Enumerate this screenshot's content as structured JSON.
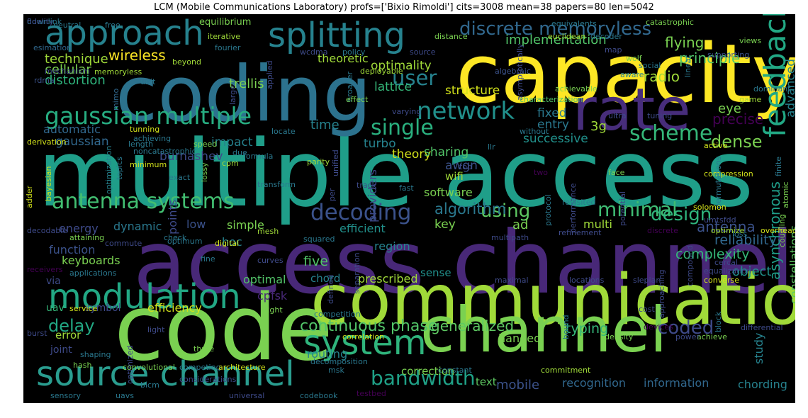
{
  "title": "LCM (Mobile Communications Laboratory) profs=['Bixio Rimoldi'] cits=3008 mean=38 papers=80 len=5042",
  "palette": {
    "background": "#000000",
    "yellow": "#fde725",
    "lightgreen": "#7ad151",
    "green": "#22a884",
    "teal": "#2a788e",
    "blue": "#414487",
    "purple": "#440154"
  },
  "words": [
    {
      "text": "multiple access",
      "color": "#1f9e89"
    },
    {
      "text": "access channel",
      "color": "#482878"
    },
    {
      "text": "capacity",
      "color": "#fde725"
    },
    {
      "text": "coding",
      "color": "#2c728e"
    },
    {
      "text": "code",
      "color": "#7ad151"
    },
    {
      "text": "communication",
      "color": "#a0da39"
    },
    {
      "text": "channel",
      "color": "#7ad151"
    },
    {
      "text": "rate",
      "color": "#472d7b"
    },
    {
      "text": "splitting",
      "color": "#26828e"
    },
    {
      "text": "approach",
      "color": "#26828e"
    },
    {
      "text": "modulation",
      "color": "#22a884"
    },
    {
      "text": "source channel",
      "color": "#2a9d8f"
    },
    {
      "text": "system",
      "color": "#2fb47c"
    },
    {
      "text": "gaussian multiple",
      "color": "#27ad81"
    },
    {
      "text": "discrete memoryless",
      "color": "#31688e"
    },
    {
      "text": "network",
      "color": "#21918c"
    },
    {
      "text": "feedback",
      "color": "#22a884"
    },
    {
      "text": "scheme",
      "color": "#35b779"
    },
    {
      "text": "single",
      "color": "#2ab07f"
    },
    {
      "text": "user",
      "color": "#26828e"
    },
    {
      "text": "antenna systems",
      "color": "#42be71"
    },
    {
      "text": "decoding",
      "color": "#3b528b"
    },
    {
      "text": "minimal",
      "color": "#3fbc73"
    },
    {
      "text": "using",
      "color": "#5ec962"
    },
    {
      "text": "design",
      "color": "#2fb47c"
    },
    {
      "text": "bandwidth",
      "color": "#1fa187"
    },
    {
      "text": "delay",
      "color": "#22a884"
    },
    {
      "text": "continuous phase",
      "color": "#52c569"
    },
    {
      "text": "generalized",
      "color": "#5ec962"
    },
    {
      "text": "asynchronous",
      "color": "#1f9e89"
    },
    {
      "text": "coded",
      "color": "#3e4a89"
    },
    {
      "text": "dense",
      "color": "#7ad151"
    },
    {
      "text": "flying",
      "color": "#7ad151"
    },
    {
      "text": "principle",
      "color": "#52c569"
    },
    {
      "text": "radio",
      "color": "#a0da39"
    },
    {
      "text": "implementation",
      "color": "#52c569"
    },
    {
      "text": "trellis",
      "color": "#7ad151"
    },
    {
      "text": "wireless",
      "color": "#fde725"
    },
    {
      "text": "technique",
      "color": "#a0da39"
    },
    {
      "text": "cellular",
      "color": "#7ad151"
    },
    {
      "text": "distortion",
      "color": "#2fb47c"
    },
    {
      "text": "optimality",
      "color": "#a0da39"
    },
    {
      "text": "structure",
      "color": "#d2e21b"
    },
    {
      "text": "lattice",
      "color": "#35b779"
    },
    {
      "text": "theoretic",
      "color": "#a0da39"
    },
    {
      "text": "advanced",
      "color": "#26828e"
    },
    {
      "text": "eye",
      "color": "#7ad151"
    },
    {
      "text": "time",
      "color": "#26828e"
    },
    {
      "text": "automatic",
      "color": "#31688e"
    },
    {
      "text": "burnashev",
      "color": "#3e4a89"
    },
    {
      "text": "gaussian",
      "color": "#31688e"
    },
    {
      "text": "impact",
      "color": "#26828e"
    },
    {
      "text": "turbo",
      "color": "#26828e"
    },
    {
      "text": "theory",
      "color": "#d2e21b"
    },
    {
      "text": "fixed",
      "color": "#2a788e"
    },
    {
      "text": "entry",
      "color": "#2a788e"
    },
    {
      "text": "3g",
      "color": "#a0da39"
    },
    {
      "text": "successive",
      "color": "#21918c"
    },
    {
      "text": "precise",
      "color": "#440154"
    },
    {
      "text": "sharing",
      "color": "#52c569"
    },
    {
      "text": "awgn",
      "color": "#3b528b"
    },
    {
      "text": "wifi",
      "color": "#a0da39"
    },
    {
      "text": "software",
      "color": "#7ad151"
    },
    {
      "text": "algorithm",
      "color": "#2a788e"
    },
    {
      "text": "ad",
      "color": "#7ad151"
    },
    {
      "text": "key",
      "color": "#7ad151"
    },
    {
      "text": "multi",
      "color": "#a0da39"
    },
    {
      "text": "antenna",
      "color": "#3b528b"
    },
    {
      "text": "reliability",
      "color": "#31688e"
    },
    {
      "text": "complexity",
      "color": "#35b779"
    },
    {
      "text": "constellations",
      "color": "#5ec962"
    },
    {
      "text": "object",
      "color": "#21918c"
    },
    {
      "text": "energy",
      "color": "#3e4a89"
    },
    {
      "text": "dynamic",
      "color": "#2a788e"
    },
    {
      "text": "low",
      "color": "#3b528b"
    },
    {
      "text": "simple",
      "color": "#7ad151"
    },
    {
      "text": "points",
      "color": "#3e4a89"
    },
    {
      "text": "providers",
      "color": "#3e4a89"
    },
    {
      "text": "efficient",
      "color": "#21918c"
    },
    {
      "text": "hoc",
      "color": "#26828e"
    },
    {
      "text": "function",
      "color": "#3b528b"
    },
    {
      "text": "five",
      "color": "#52c569"
    },
    {
      "text": "region",
      "color": "#26828e"
    },
    {
      "text": "keyboards",
      "color": "#7ad151"
    },
    {
      "text": "optimal",
      "color": "#52c569"
    },
    {
      "text": "chord",
      "color": "#26828e"
    },
    {
      "text": "prescribed",
      "color": "#a0da39"
    },
    {
      "text": "sense",
      "color": "#21918c"
    },
    {
      "text": "cpfsk",
      "color": "#482878"
    },
    {
      "text": "via",
      "color": "#3e4a89"
    },
    {
      "text": "uav",
      "color": "#35b779"
    },
    {
      "text": "symbol",
      "color": "#3e4a89"
    },
    {
      "text": "efficiency",
      "color": "#d2e21b"
    },
    {
      "text": "error",
      "color": "#a0da39"
    },
    {
      "text": "joint",
      "color": "#3e4a89"
    },
    {
      "text": "typing",
      "color": "#35b779"
    },
    {
      "text": "routing",
      "color": "#26828e"
    },
    {
      "text": "handed",
      "color": "#7ad151"
    },
    {
      "text": "study",
      "color": "#26828e"
    },
    {
      "text": "mobile",
      "color": "#3b528b"
    },
    {
      "text": "recognition",
      "color": "#31688e"
    },
    {
      "text": "information",
      "color": "#31688e"
    },
    {
      "text": "chording",
      "color": "#26828e"
    },
    {
      "text": "correction",
      "color": "#7ad151"
    },
    {
      "text": "text",
      "color": "#5ec962"
    },
    {
      "text": "equilibrium",
      "color": "#7ad151"
    },
    {
      "text": "neutral",
      "color": "#2a788e"
    },
    {
      "text": "free",
      "color": "#2a788e"
    },
    {
      "text": "iterative",
      "color": "#a0da39"
    },
    {
      "text": "distance",
      "color": "#7ad151"
    },
    {
      "text": "euclidean",
      "color": "#a0da39"
    },
    {
      "text": "decoder",
      "color": "#2a788e"
    },
    {
      "text": "catastrophic",
      "color": "#7ad151"
    },
    {
      "text": "equivalents",
      "color": "#2a788e"
    },
    {
      "text": "views",
      "color": "#7ad151"
    },
    {
      "text": "esimation",
      "color": "#31688e"
    },
    {
      "text": "fourier",
      "color": "#2a788e"
    },
    {
      "text": "wcdma",
      "color": "#3e4a89"
    },
    {
      "text": "source",
      "color": "#3e4a89"
    },
    {
      "text": "map",
      "color": "#3e4a89"
    },
    {
      "text": "linear",
      "color": "#2a788e"
    },
    {
      "text": "social",
      "color": "#2a788e"
    },
    {
      "text": "supporting",
      "color": "#3b528b"
    },
    {
      "text": "wolf",
      "color": "#7ad151"
    },
    {
      "text": "beyond",
      "color": "#a0da39"
    },
    {
      "text": "policy",
      "color": "#2a788e"
    },
    {
      "text": "deployable",
      "color": "#a0da39"
    },
    {
      "text": "mechanism",
      "color": "#3e4a89"
    },
    {
      "text": "memoryless",
      "color": "#a0da39"
    },
    {
      "text": "mimo",
      "color": "#31688e"
    },
    {
      "text": "rdma",
      "color": "#3b528b"
    },
    {
      "text": "unit",
      "color": "#2a788e"
    },
    {
      "text": "large",
      "color": "#3e4a89"
    },
    {
      "text": "applied",
      "color": "#3e4a89"
    },
    {
      "text": "broader",
      "color": "#2a788e"
    },
    {
      "text": "asymptotically",
      "color": "#3e4a89"
    },
    {
      "text": "algebraic",
      "color": "#3b528b"
    },
    {
      "text": "aware",
      "color": "#26828e"
    },
    {
      "text": "achievable",
      "color": "#7ad151"
    },
    {
      "text": "characterization",
      "color": "#52c569"
    },
    {
      "text": "dominant",
      "color": "#2a788e"
    },
    {
      "text": "game",
      "color": "#a0da39"
    },
    {
      "text": "effect",
      "color": "#7ad151"
    },
    {
      "text": "varying",
      "color": "#3e4a89"
    },
    {
      "text": "ultra",
      "color": "#3e4a89"
    },
    {
      "text": "tuning",
      "color": "#3e4a89"
    },
    {
      "text": "tunning",
      "color": "#d2e21b"
    },
    {
      "text": "achieving",
      "color": "#2a788e"
    },
    {
      "text": "locate",
      "color": "#2a788e"
    },
    {
      "text": "without",
      "color": "#2a788e"
    },
    {
      "text": "derivation",
      "color": "#d2e21b"
    },
    {
      "text": "length",
      "color": "#2a788e"
    },
    {
      "text": "speed",
      "color": "#7ad151"
    },
    {
      "text": "due",
      "color": "#2a788e"
    },
    {
      "text": "formula",
      "color": "#2a788e"
    },
    {
      "text": "unified",
      "color": "#3e4a89"
    },
    {
      "text": "llr",
      "color": "#2a788e"
    },
    {
      "text": "active",
      "color": "#d2e21b"
    },
    {
      "text": "finite",
      "color": "#2a788e"
    },
    {
      "text": "optimization",
      "color": "#26828e"
    },
    {
      "text": "minimum",
      "color": "#d2e21b"
    },
    {
      "text": "topics",
      "color": "#2a788e"
    },
    {
      "text": "adder",
      "color": "#d2e21b"
    },
    {
      "text": "noncatastrophic",
      "color": "#2a788e"
    },
    {
      "text": "lossy",
      "color": "#7ad151"
    },
    {
      "text": "cpm",
      "color": "#a0da39"
    },
    {
      "text": "parity",
      "color": "#a0da39"
    },
    {
      "text": "top",
      "color": "#3e4a89"
    },
    {
      "text": "two",
      "color": "#440154"
    },
    {
      "text": "face",
      "color": "#7ad151"
    },
    {
      "text": "bayesian",
      "color": "#d2e21b"
    },
    {
      "text": "exact",
      "color": "#2a788e"
    },
    {
      "text": "transform",
      "color": "#2a788e"
    },
    {
      "text": "per",
      "color": "#3e4a89"
    },
    {
      "text": "track",
      "color": "#3e4a89"
    },
    {
      "text": "fast",
      "color": "#2a788e"
    },
    {
      "text": "protocol",
      "color": "#2a788e"
    },
    {
      "text": "performance",
      "color": "#3e4a89"
    },
    {
      "text": "potential",
      "color": "#3e4a89"
    },
    {
      "text": "compression",
      "color": "#d2e21b"
    },
    {
      "text": "atomic",
      "color": "#7ad151"
    },
    {
      "text": "permutations",
      "color": "#2a788e"
    },
    {
      "text": "revisited",
      "color": "#2a788e"
    },
    {
      "text": "solomon",
      "color": "#d2e21b"
    },
    {
      "text": "coupling",
      "color": "#7ad151"
    },
    {
      "text": "decodable",
      "color": "#3e4a89"
    },
    {
      "text": "attaining",
      "color": "#7ad151"
    },
    {
      "text": "check",
      "color": "#2a788e"
    },
    {
      "text": "squared",
      "color": "#2a788e"
    },
    {
      "text": "multipath",
      "color": "#3e4a89"
    },
    {
      "text": "umtsfdd",
      "color": "#3e4a89"
    },
    {
      "text": "loss",
      "color": "#2a788e"
    },
    {
      "text": "commute",
      "color": "#3e4a89"
    },
    {
      "text": "optimum",
      "color": "#2a788e"
    },
    {
      "text": "digital",
      "color": "#d2e21b"
    },
    {
      "text": "mesh",
      "color": "#a0da39"
    },
    {
      "text": "refinement",
      "color": "#3e4a89"
    },
    {
      "text": "discrete",
      "color": "#440154"
    },
    {
      "text": "optimize",
      "color": "#a0da39"
    },
    {
      "text": "overheads",
      "color": "#d2e21b"
    },
    {
      "text": "receivers",
      "color": "#440154"
    },
    {
      "text": "applications",
      "color": "#2a788e"
    },
    {
      "text": "fine",
      "color": "#2a788e"
    },
    {
      "text": "curves",
      "color": "#3e4a89"
    },
    {
      "text": "defined",
      "color": "#3e4a89"
    },
    {
      "text": "separation",
      "color": "#3e4a89"
    },
    {
      "text": "locations",
      "color": "#3e4a89"
    },
    {
      "text": "slepian",
      "color": "#3e4a89"
    },
    {
      "text": "approaching",
      "color": "#3e4a89"
    },
    {
      "text": "compound",
      "color": "#3e4a89"
    },
    {
      "text": "equalization",
      "color": "#3e4a89"
    },
    {
      "text": "cercal",
      "color": "#3e4a89"
    },
    {
      "text": "maximal",
      "color": "#3e4a89"
    },
    {
      "text": "converse",
      "color": "#d2e21b"
    },
    {
      "text": "service",
      "color": "#d2e21b"
    },
    {
      "text": "tight",
      "color": "#7ad151"
    },
    {
      "text": "competition",
      "color": "#2a788e"
    },
    {
      "text": "bound",
      "color": "#2a788e"
    },
    {
      "text": "cost",
      "color": "#3e4a89"
    },
    {
      "text": "block",
      "color": "#2a788e"
    },
    {
      "text": "burst",
      "color": "#3e4a89"
    },
    {
      "text": "light",
      "color": "#3e4a89"
    },
    {
      "text": "devices",
      "color": "#440154"
    },
    {
      "text": "differential",
      "color": "#3e4a89"
    },
    {
      "text": "achieve",
      "color": "#7ad151"
    },
    {
      "text": "shaping",
      "color": "#2a788e"
    },
    {
      "text": "optimized",
      "color": "#3e4a89"
    },
    {
      "text": "correlation",
      "color": "#d2e21b"
    },
    {
      "text": "density",
      "color": "#7ad151"
    },
    {
      "text": "power",
      "color": "#3e4a89"
    },
    {
      "text": "hash",
      "color": "#7ad151"
    },
    {
      "text": "three",
      "color": "#7ad151"
    },
    {
      "text": "decomposition",
      "color": "#2a788e"
    },
    {
      "text": "convolutional",
      "color": "#7ad151"
    },
    {
      "text": "competing",
      "color": "#2a788e"
    },
    {
      "text": "architecture",
      "color": "#d2e21b"
    },
    {
      "text": "msk",
      "color": "#2a788e"
    },
    {
      "text": "constant",
      "color": "#2a788e"
    },
    {
      "text": "commitment",
      "color": "#a0da39"
    },
    {
      "text": "considerations",
      "color": "#3e4a89"
    },
    {
      "text": "bicm",
      "color": "#2a788e"
    },
    {
      "text": "reed",
      "color": "#2a788e"
    },
    {
      "text": "sensory",
      "color": "#2a788e"
    },
    {
      "text": "uavs",
      "color": "#2a788e"
    },
    {
      "text": "universal",
      "color": "#3e4a89"
    },
    {
      "text": "codebook",
      "color": "#2a788e"
    },
    {
      "text": "testbed",
      "color": "#440154"
    },
    {
      "text": "downlink",
      "color": "#2a788e"
    },
    {
      "text": "fidelity",
      "color": "#3e4a89"
    }
  ]
}
